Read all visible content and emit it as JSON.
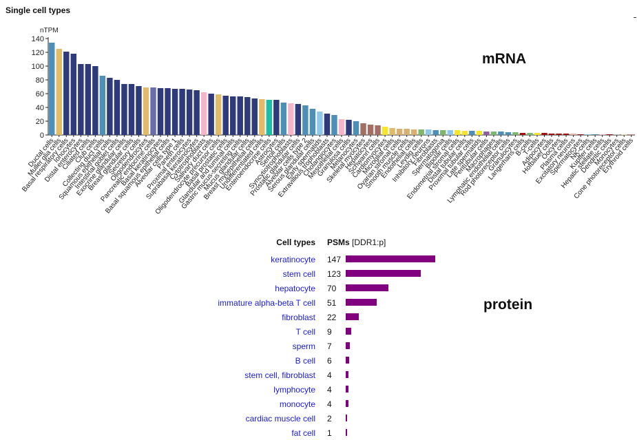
{
  "page": {
    "panel_title": "Single cell types",
    "mrna_label": "mRNA",
    "protein_label": "protein"
  },
  "chart_data": {
    "type": "bar",
    "ylabel": "nTPM",
    "ylim": [
      0,
      140
    ],
    "yticks": [
      0,
      20,
      40,
      60,
      80,
      100,
      120,
      140
    ],
    "grid": false,
    "categories": [
      "Ductal cells",
      "Muller glia cells",
      "Basal respiratory cells",
      "Ionocytes",
      "Distal enterocytes",
      "Ciliated cells",
      "Club cells",
      "Collecting duct cells",
      "Squamous epithelial cells",
      "Intestinal goblet cells",
      "Exocrine glandular cells",
      "Breast glandular cells",
      "Secretory cells",
      "Oligodendrocytes",
      "Pancreatic endocrine cells",
      "Basal keratinocytes",
      "Basal squamous epithelial cells",
      "Alveolar cells type 1",
      "Paneth cells",
      "Proximal enterocytes",
      "Suprabasal keratinocytes",
      "Cytotrophoblasts",
      "Salivary duct cells",
      "Oligodendrocyte precursor cells",
      "Basal prostatic cells",
      "Glandular and luminal cells",
      "Gastric mucus-secreting cells",
      "Mucus glandular cells",
      "Breast myoepithelial cells",
      "Undifferentiated cells",
      "Enteroendocrine cells",
      "Astrocytes",
      "Sertoli cells",
      "Syncytiotrophoblasts",
      "Prostatic glandular cells",
      "Alveolar cells type 2",
      "Serous glandular cells",
      "Early spermatids",
      "Extravillous trophoblasts",
      "Cholangiocytes",
      "Mesothelial cells",
      "Granulosa cells",
      "Melanocytes",
      "Skeletal myocytes",
      "Hepatocytes",
      "Schwann cells",
      "Cardiomyocytes",
      "Microglial cells",
      "Ovarian stromal cells",
      "Smooth muscle cells",
      "Endothelial cells",
      "Leydig cells",
      "Inhibitory neurons",
      "Fibroblasts",
      "Spermatogonia",
      "Bipolar cells",
      "Endometrial stromal cells",
      "Distal tubular cells",
      "Proximal tubular cells",
      "Late spermatids",
      "Peritubular cells",
      "Macrophages",
      "Lymphatic endothelial cells",
      "Rod photoreceptor cells",
      "Granulocytes",
      "Langerhans cells",
      "B-cells",
      "T-cells",
      "Adipocytes",
      "Hofbauer cells",
      "Oocytes",
      "Plasma cells",
      "Excitatory neurons",
      "Spermatocytes",
      "NK-cells",
      "Kupffer cells",
      "Hepatic stellate cells",
      "Dendritic cells",
      "Monocytes",
      "Cone photoreceptor cells",
      "Erythroid cells"
    ],
    "values": [
      134,
      125,
      121,
      118,
      103,
      103,
      100,
      86,
      83,
      80,
      74,
      74,
      71,
      69,
      69,
      68,
      68,
      67,
      67,
      66,
      65,
      62,
      60,
      59,
      57,
      56,
      56,
      55,
      53,
      52,
      51,
      51,
      47,
      46,
      45,
      43,
      38,
      34,
      31,
      29,
      23,
      22,
      20,
      17,
      15,
      14,
      12,
      10,
      9,
      9,
      8,
      8,
      8,
      7,
      7,
      7,
      7,
      6,
      6,
      6,
      5,
      5,
      5,
      4,
      4,
      3,
      3,
      3,
      3,
      2,
      2,
      2,
      2,
      1,
      1,
      1,
      1,
      1,
      1,
      0.5,
      0.5
    ],
    "colors": [
      "#4e8fb5",
      "#e0bb6a",
      "#2e3a7a",
      "#2e3a7a",
      "#2e3a7a",
      "#2e3a7a",
      "#2e3a7a",
      "#4e8fb5",
      "#2e3a7a",
      "#2e3a7a",
      "#2e3a7a",
      "#2e3a7a",
      "#2e3a7a",
      "#e0bb6a",
      "#6a6ea8",
      "#2e3a7a",
      "#2e3a7a",
      "#2e3a7a",
      "#2e3a7a",
      "#2e3a7a",
      "#2e3a7a",
      "#f4b6c8",
      "#2e3a7a",
      "#e0bb6a",
      "#2e3a7a",
      "#2e3a7a",
      "#2e3a7a",
      "#2e3a7a",
      "#2e3a7a",
      "#e0bb6a",
      "#1bbfa8",
      "#2e3a7a",
      "#4e8fb5",
      "#f4b6c8",
      "#2e3a7a",
      "#4e8fb5",
      "#4e8fb5",
      "#8fc7e8",
      "#2e3a7a",
      "#4e8fb5",
      "#f4b6c8",
      "#2e3a7a",
      "#4e8fb5",
      "#a36f63",
      "#a36f63",
      "#a36f63",
      "#f5e62b",
      "#e0bb6a",
      "#d9b070",
      "#d9b070",
      "#d9b070",
      "#7bb96f",
      "#8fc7e8",
      "#4e8fb5",
      "#7bb96f",
      "#8fc7e8",
      "#f5e62b",
      "#f5e62b",
      "#4e8fb5",
      "#f5e62b",
      "#8f5ea0",
      "#7bb96f",
      "#4e8fb5",
      "#4e8fb5",
      "#7bb96f",
      "#a01010",
      "#7bb96f",
      "#f5e62b",
      "#a01010",
      "#a01010",
      "#a01010",
      "#a01010",
      "#e6b0aa",
      "#a01010",
      "#8fc7e8",
      "#4e8fb5",
      "#f4b6c8",
      "#a01010",
      "#c0c0c0",
      "#e0bb6a",
      "#a01010"
    ]
  },
  "protein_table": {
    "header_cell_types": "Cell types",
    "header_psms": "PSMs",
    "header_psms_unit": "[DDR1:p]",
    "max_psm": 147,
    "bar_color": "#800080",
    "rows": [
      {
        "cell_type": "keratinocyte",
        "psms": 147
      },
      {
        "cell_type": "stem cell",
        "psms": 123
      },
      {
        "cell_type": "hepatocyte",
        "psms": 70
      },
      {
        "cell_type": "immature alpha-beta T cell",
        "psms": 51
      },
      {
        "cell_type": "fibroblast",
        "psms": 22
      },
      {
        "cell_type": "T cell",
        "psms": 9
      },
      {
        "cell_type": "sperm",
        "psms": 7
      },
      {
        "cell_type": "B cell",
        "psms": 6
      },
      {
        "cell_type": "stem cell, fibroblast",
        "psms": 4
      },
      {
        "cell_type": "lymphocyte",
        "psms": 4
      },
      {
        "cell_type": "monocyte",
        "psms": 4
      },
      {
        "cell_type": "cardiac muscle cell",
        "psms": 2
      },
      {
        "cell_type": "fat cell",
        "psms": 1
      }
    ]
  }
}
